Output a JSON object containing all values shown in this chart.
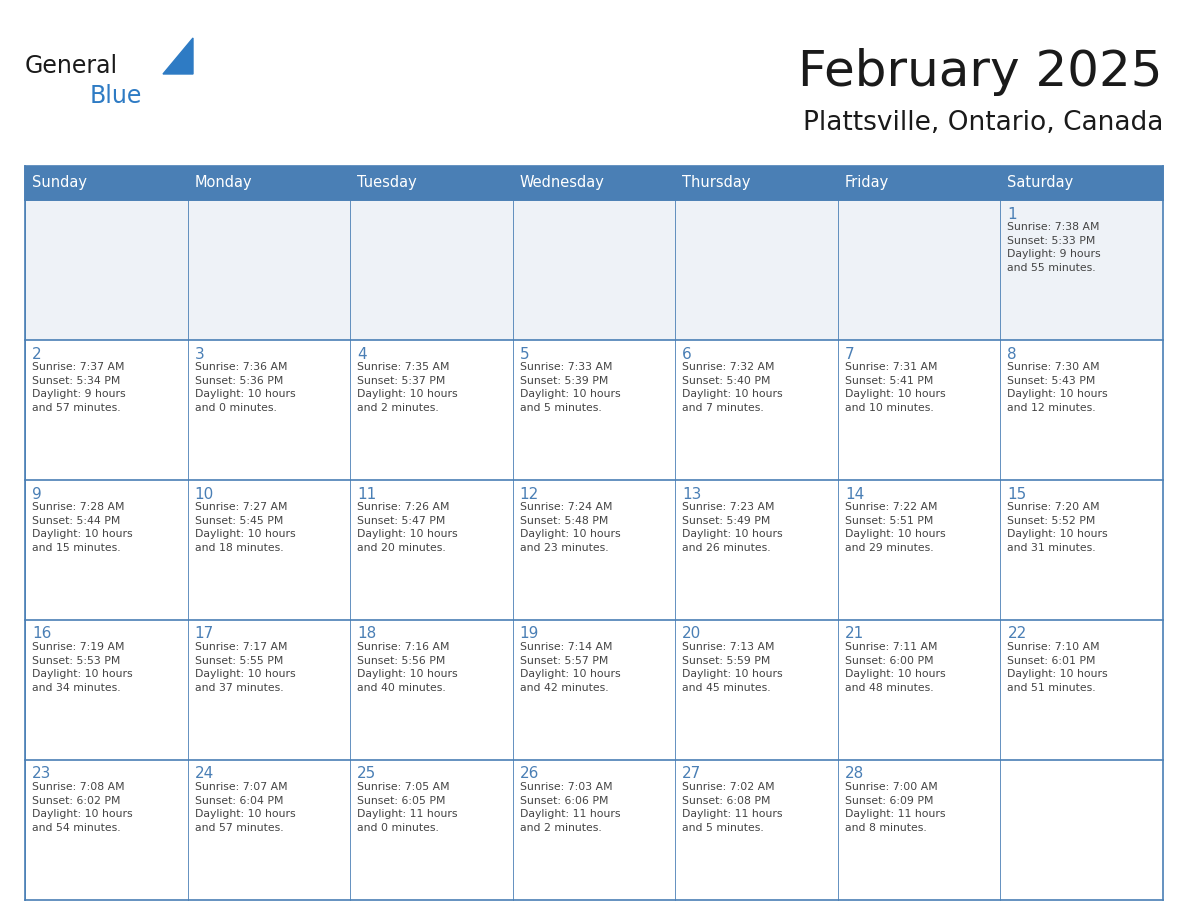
{
  "title": "February 2025",
  "subtitle": "Plattsville, Ontario, Canada",
  "header_color": "#4a7fb5",
  "header_text_color": "#ffffff",
  "cell_bg_color": "#ffffff",
  "row1_bg_color": "#eef2f7",
  "border_color": "#4a7fb5",
  "border_color_light": "#4a7fb5",
  "day_headers": [
    "Sunday",
    "Monday",
    "Tuesday",
    "Wednesday",
    "Thursday",
    "Friday",
    "Saturday"
  ],
  "title_color": "#1a1a1a",
  "subtitle_color": "#1a1a1a",
  "day_number_color": "#4a7fb5",
  "cell_text_color": "#444444",
  "general_color": "#1a1a1a",
  "blue_color": "#2e7bc4",
  "triangle_color": "#2e7bc4",
  "weeks": [
    [
      {
        "day": null,
        "info": null
      },
      {
        "day": null,
        "info": null
      },
      {
        "day": null,
        "info": null
      },
      {
        "day": null,
        "info": null
      },
      {
        "day": null,
        "info": null
      },
      {
        "day": null,
        "info": null
      },
      {
        "day": 1,
        "info": "Sunrise: 7:38 AM\nSunset: 5:33 PM\nDaylight: 9 hours\nand 55 minutes."
      }
    ],
    [
      {
        "day": 2,
        "info": "Sunrise: 7:37 AM\nSunset: 5:34 PM\nDaylight: 9 hours\nand 57 minutes."
      },
      {
        "day": 3,
        "info": "Sunrise: 7:36 AM\nSunset: 5:36 PM\nDaylight: 10 hours\nand 0 minutes."
      },
      {
        "day": 4,
        "info": "Sunrise: 7:35 AM\nSunset: 5:37 PM\nDaylight: 10 hours\nand 2 minutes."
      },
      {
        "day": 5,
        "info": "Sunrise: 7:33 AM\nSunset: 5:39 PM\nDaylight: 10 hours\nand 5 minutes."
      },
      {
        "day": 6,
        "info": "Sunrise: 7:32 AM\nSunset: 5:40 PM\nDaylight: 10 hours\nand 7 minutes."
      },
      {
        "day": 7,
        "info": "Sunrise: 7:31 AM\nSunset: 5:41 PM\nDaylight: 10 hours\nand 10 minutes."
      },
      {
        "day": 8,
        "info": "Sunrise: 7:30 AM\nSunset: 5:43 PM\nDaylight: 10 hours\nand 12 minutes."
      }
    ],
    [
      {
        "day": 9,
        "info": "Sunrise: 7:28 AM\nSunset: 5:44 PM\nDaylight: 10 hours\nand 15 minutes."
      },
      {
        "day": 10,
        "info": "Sunrise: 7:27 AM\nSunset: 5:45 PM\nDaylight: 10 hours\nand 18 minutes."
      },
      {
        "day": 11,
        "info": "Sunrise: 7:26 AM\nSunset: 5:47 PM\nDaylight: 10 hours\nand 20 minutes."
      },
      {
        "day": 12,
        "info": "Sunrise: 7:24 AM\nSunset: 5:48 PM\nDaylight: 10 hours\nand 23 minutes."
      },
      {
        "day": 13,
        "info": "Sunrise: 7:23 AM\nSunset: 5:49 PM\nDaylight: 10 hours\nand 26 minutes."
      },
      {
        "day": 14,
        "info": "Sunrise: 7:22 AM\nSunset: 5:51 PM\nDaylight: 10 hours\nand 29 minutes."
      },
      {
        "day": 15,
        "info": "Sunrise: 7:20 AM\nSunset: 5:52 PM\nDaylight: 10 hours\nand 31 minutes."
      }
    ],
    [
      {
        "day": 16,
        "info": "Sunrise: 7:19 AM\nSunset: 5:53 PM\nDaylight: 10 hours\nand 34 minutes."
      },
      {
        "day": 17,
        "info": "Sunrise: 7:17 AM\nSunset: 5:55 PM\nDaylight: 10 hours\nand 37 minutes."
      },
      {
        "day": 18,
        "info": "Sunrise: 7:16 AM\nSunset: 5:56 PM\nDaylight: 10 hours\nand 40 minutes."
      },
      {
        "day": 19,
        "info": "Sunrise: 7:14 AM\nSunset: 5:57 PM\nDaylight: 10 hours\nand 42 minutes."
      },
      {
        "day": 20,
        "info": "Sunrise: 7:13 AM\nSunset: 5:59 PM\nDaylight: 10 hours\nand 45 minutes."
      },
      {
        "day": 21,
        "info": "Sunrise: 7:11 AM\nSunset: 6:00 PM\nDaylight: 10 hours\nand 48 minutes."
      },
      {
        "day": 22,
        "info": "Sunrise: 7:10 AM\nSunset: 6:01 PM\nDaylight: 10 hours\nand 51 minutes."
      }
    ],
    [
      {
        "day": 23,
        "info": "Sunrise: 7:08 AM\nSunset: 6:02 PM\nDaylight: 10 hours\nand 54 minutes."
      },
      {
        "day": 24,
        "info": "Sunrise: 7:07 AM\nSunset: 6:04 PM\nDaylight: 10 hours\nand 57 minutes."
      },
      {
        "day": 25,
        "info": "Sunrise: 7:05 AM\nSunset: 6:05 PM\nDaylight: 11 hours\nand 0 minutes."
      },
      {
        "day": 26,
        "info": "Sunrise: 7:03 AM\nSunset: 6:06 PM\nDaylight: 11 hours\nand 2 minutes."
      },
      {
        "day": 27,
        "info": "Sunrise: 7:02 AM\nSunset: 6:08 PM\nDaylight: 11 hours\nand 5 minutes."
      },
      {
        "day": 28,
        "info": "Sunrise: 7:00 AM\nSunset: 6:09 PM\nDaylight: 11 hours\nand 8 minutes."
      },
      {
        "day": null,
        "info": null
      }
    ]
  ]
}
